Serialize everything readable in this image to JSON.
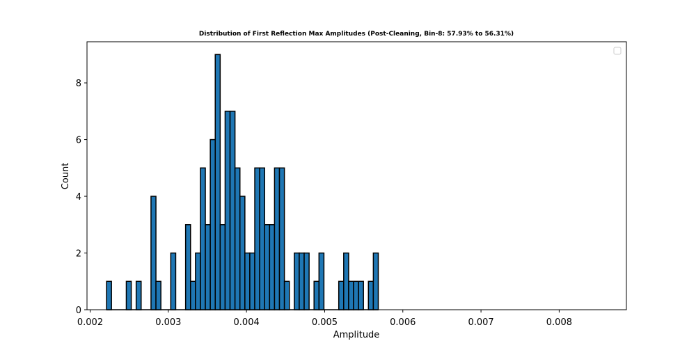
{
  "chart_data": {
    "type": "bar",
    "title": "Distribution of First Reflection Max Amplitudes (Post-Cleaning, Bin-8: 57.93% to 56.31%)",
    "xlabel": "Amplitude",
    "ylabel": "Count",
    "xlim": [
      0.00196,
      0.00886
    ],
    "ylim": [
      0,
      9.45
    ],
    "xticks": [
      "0.002",
      "0.003",
      "0.004",
      "0.005",
      "0.006",
      "0.007",
      "0.008"
    ],
    "xtick_values": [
      0.002,
      0.003,
      0.004,
      0.005,
      0.006,
      0.007,
      0.008
    ],
    "yticks": [
      "0",
      "2",
      "4",
      "6",
      "8"
    ],
    "ytick_values": [
      0,
      2,
      4,
      6,
      8
    ],
    "bin_start": 0.00221,
    "bin_width": 6.32e-05,
    "values": [
      1,
      0,
      0,
      0,
      1,
      0,
      1,
      0,
      0,
      4,
      1,
      0,
      0,
      2,
      0,
      0,
      3,
      1,
      2,
      5,
      3,
      6,
      9,
      3,
      7,
      7,
      5,
      4,
      2,
      2,
      5,
      5,
      3,
      3,
      5,
      5,
      1,
      0,
      2,
      2,
      2,
      0,
      1,
      2,
      0,
      0,
      0,
      1,
      2,
      1,
      1,
      1,
      0,
      1,
      2
    ],
    "bar_color": "#1f77b4",
    "edge_color": "#000000",
    "legend": "top-right (empty)",
    "grid": false
  }
}
